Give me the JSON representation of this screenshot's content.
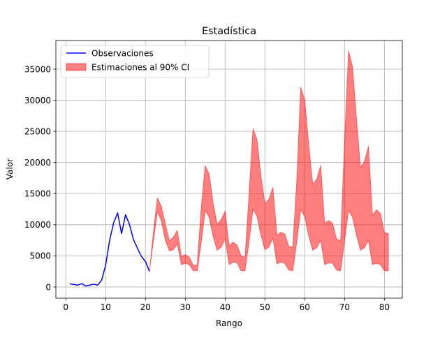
{
  "chart_data": {
    "type": "line",
    "title": "Estadística",
    "xlabel": "Rango",
    "ylabel": "Valor",
    "xlim": [
      -2.5,
      84.5
    ],
    "ylim": [
      -1800,
      39600
    ],
    "xticks": [
      0,
      10,
      20,
      30,
      40,
      50,
      60,
      70,
      80
    ],
    "yticks": [
      0,
      5000,
      10000,
      15000,
      20000,
      25000,
      30000,
      35000
    ],
    "grid": true,
    "legend_position": "top-left",
    "series": [
      {
        "name": "Observaciones",
        "kind": "line",
        "color": "#0000ff",
        "x": [
          1,
          2,
          3,
          4,
          5,
          6,
          7,
          8,
          9,
          10,
          11,
          12,
          13,
          14,
          15,
          16,
          17,
          18,
          19,
          20,
          21
        ],
        "y": [
          500,
          400,
          300,
          550,
          150,
          300,
          450,
          300,
          1100,
          3500,
          7500,
          10300,
          11900,
          8600,
          11600,
          10000,
          7600,
          6200,
          4900,
          4100,
          2500
        ]
      },
      {
        "name": "Estimaciones al 90% CI",
        "kind": "band",
        "color": "#ff0000",
        "x": [
          21,
          22,
          23,
          24,
          25,
          26,
          27,
          28,
          29,
          30,
          31,
          32,
          33,
          34,
          35,
          36,
          37,
          38,
          39,
          40,
          41,
          42,
          43,
          44,
          45,
          46,
          47,
          48,
          49,
          50,
          51,
          52,
          53,
          54,
          55,
          56,
          57,
          58,
          59,
          60,
          61,
          62,
          63,
          64,
          65,
          66,
          67,
          68,
          69,
          70,
          71,
          72,
          73,
          74,
          75,
          76,
          77,
          78,
          79,
          80,
          81
        ],
        "lower": [
          2500,
          7500,
          12100,
          10600,
          7500,
          5800,
          6000,
          6900,
          3600,
          3800,
          3600,
          2600,
          2600,
          7200,
          12300,
          11200,
          8100,
          5900,
          6400,
          7700,
          3600,
          4000,
          3900,
          2600,
          2600,
          7200,
          12500,
          11400,
          8300,
          6000,
          6400,
          7900,
          3700,
          4000,
          3800,
          2700,
          2600,
          7300,
          12400,
          11300,
          8200,
          5900,
          6300,
          7500,
          3600,
          3900,
          3800,
          2700,
          2600,
          7400,
          12300,
          11200,
          8300,
          5900,
          6300,
          7500,
          3600,
          3800,
          3600,
          2600,
          2600
        ],
        "upper": [
          2500,
          8800,
          14300,
          12900,
          10100,
          7400,
          8000,
          9100,
          4900,
          5200,
          4800,
          3500,
          3500,
          12700,
          19500,
          18100,
          13400,
          10100,
          10800,
          12200,
          6600,
          7200,
          6700,
          5000,
          4800,
          14700,
          25400,
          23700,
          17800,
          13400,
          14100,
          16000,
          8300,
          8800,
          8500,
          6500,
          6400,
          17100,
          32100,
          30000,
          22900,
          16500,
          17300,
          19500,
          10200,
          10700,
          10200,
          7700,
          7400,
          23300,
          37900,
          35400,
          26900,
          19200,
          20200,
          22600,
          11500,
          12400,
          11800,
          8700,
          8600
        ]
      }
    ]
  }
}
